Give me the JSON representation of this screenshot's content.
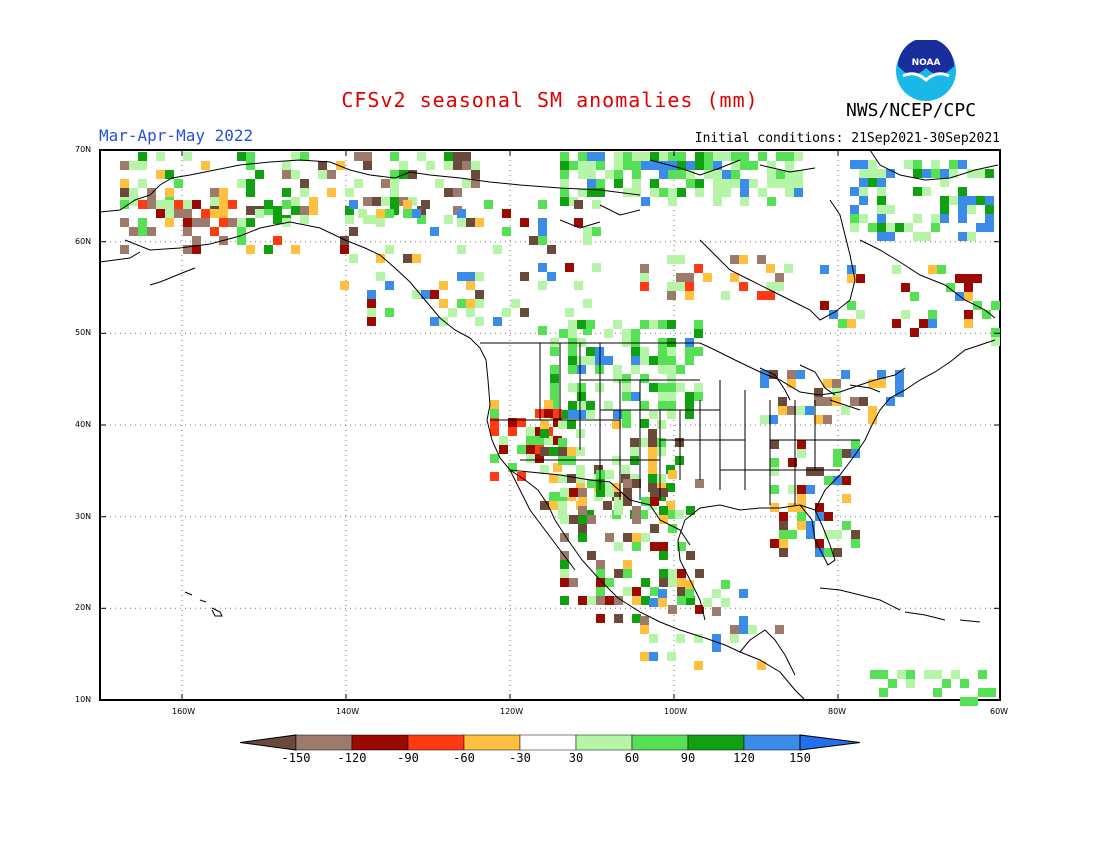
{
  "title": "CFSv2 seasonal SM anomalies (mm)",
  "agency": "NWS/NCEP/CPC",
  "logo_text": "NOAA",
  "season": "Mar-Apr-May 2022",
  "initial_conditions": "Initial conditions: 21Sep2021-30Sep2021",
  "lat_labels": [
    "70N",
    "60N",
    "50N",
    "40N",
    "30N",
    "20N",
    "10N"
  ],
  "lon_labels": [
    "160W",
    "140W",
    "120W",
    "100W",
    "80W",
    "60W"
  ],
  "colorbar": {
    "labels": [
      "-150",
      "-120",
      "-90",
      "-60",
      "-30",
      "30",
      "60",
      "90",
      "120",
      "150"
    ],
    "colors": [
      "#6b4a3c",
      "#9c7a6c",
      "#9a0a00",
      "#ff3a12",
      "#ffc040",
      "#ffffff",
      "#b6f5a8",
      "#55e055",
      "#11a011",
      "#3a8ce8",
      "#2070f0"
    ]
  },
  "legend_colors": {
    "brown": "#6b4a3c",
    "lightbrown": "#9c7a6c",
    "darkred": "#9a0a00",
    "red": "#ff3a12",
    "orange": "#ffc040",
    "lightgreen": "#b6f5a8",
    "green": "#55e055",
    "darkgreen": "#11a011",
    "blue": "#3a8ce8"
  }
}
